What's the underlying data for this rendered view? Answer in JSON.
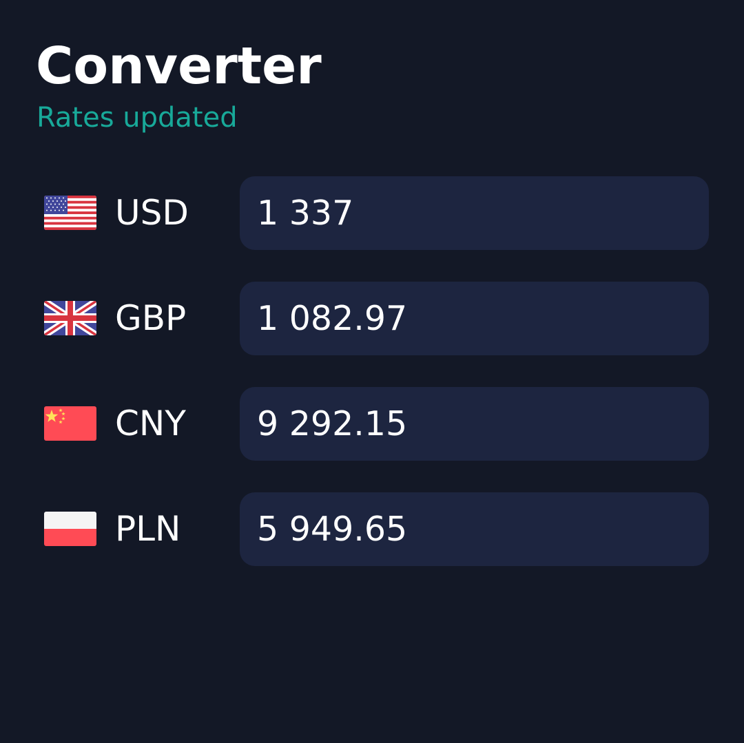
{
  "header": {
    "title": "Converter",
    "status": "Rates updated"
  },
  "colors": {
    "background": "#131826",
    "field": "#1d2540",
    "accent": "#18a999",
    "text": "#ffffff"
  },
  "currencies": [
    {
      "code": "USD",
      "flag": "us-flag-icon",
      "value": "1 337"
    },
    {
      "code": "GBP",
      "flag": "gb-flag-icon",
      "value": "1 082.97"
    },
    {
      "code": "CNY",
      "flag": "cn-flag-icon",
      "value": "9 292.15"
    },
    {
      "code": "PLN",
      "flag": "pl-flag-icon",
      "value": "5 949.65"
    }
  ]
}
